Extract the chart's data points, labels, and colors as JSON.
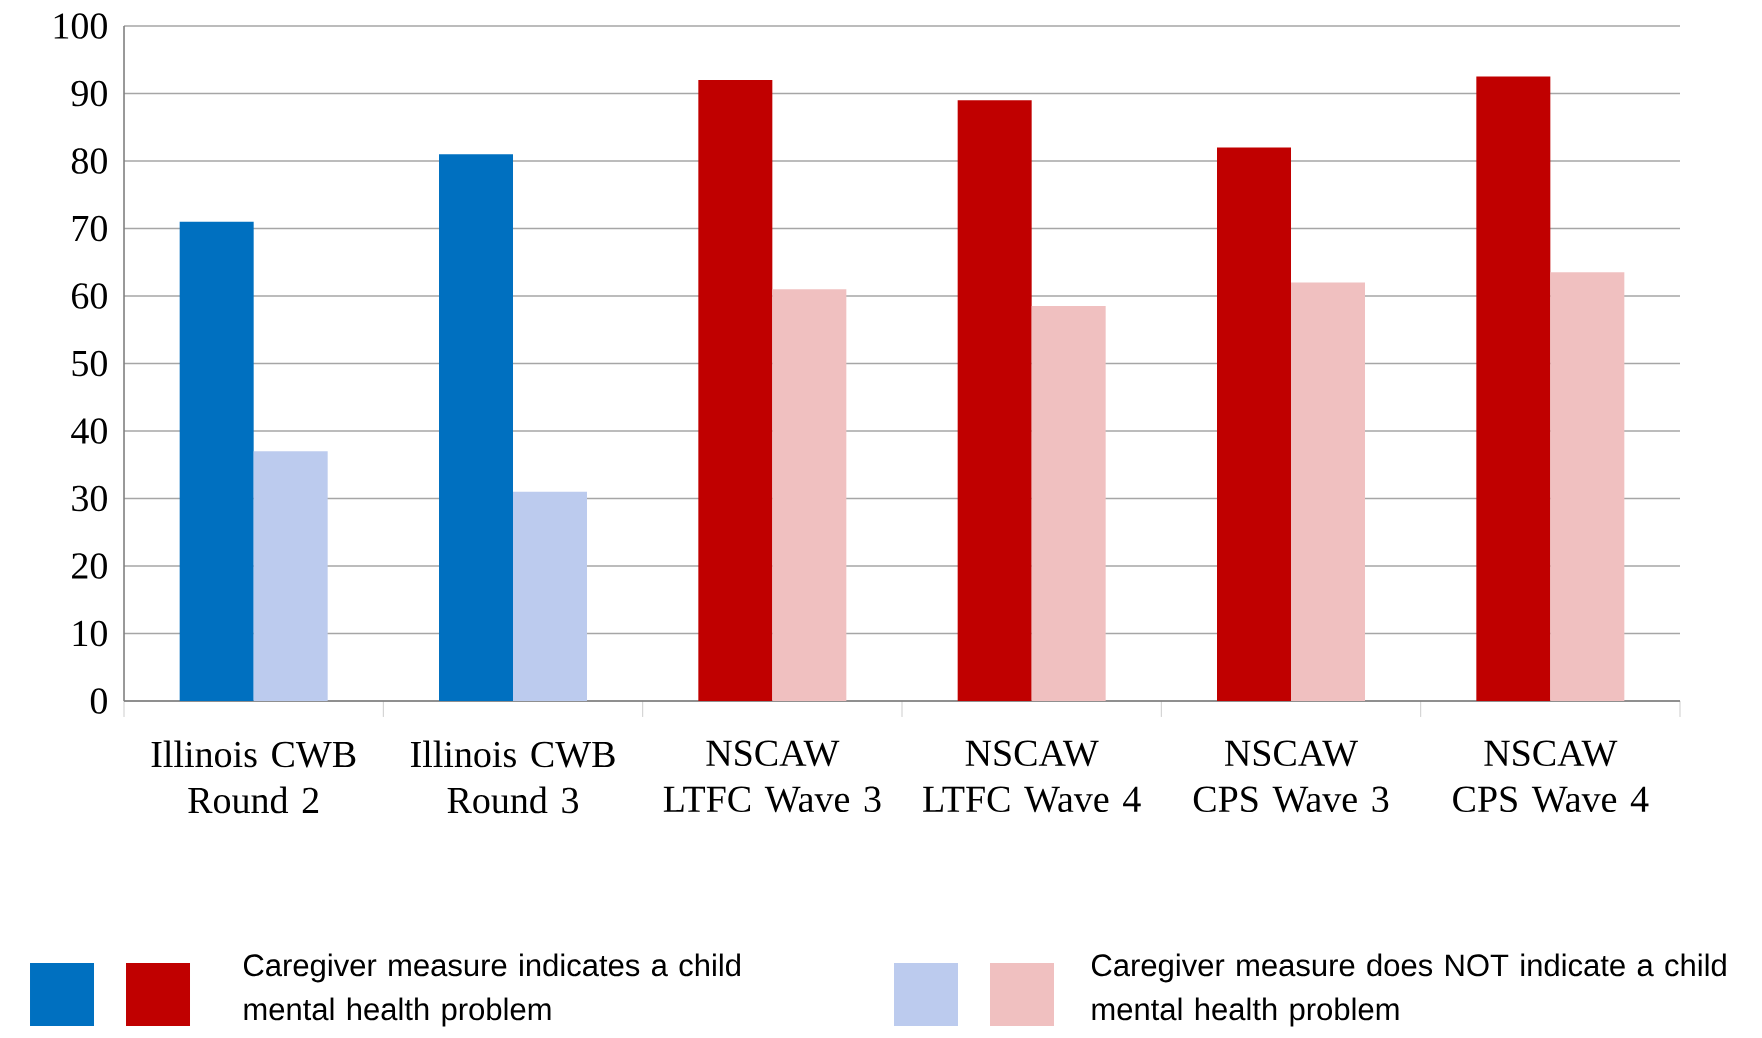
{
  "chart_data": {
    "type": "bar",
    "categories": [
      "Illinois CWB Round 2",
      "Illinois CWB Round 3",
      "NSCAW LTFC Wave 3",
      "NSCAW LTFC Wave 4",
      "NSCAW CPS Wave 3",
      "NSCAW CPS Wave 4"
    ],
    "series": [
      {
        "name": "Caregiver measure indicates a child mental health problem",
        "colors": [
          "#0070c0",
          "#0070c0",
          "#c00000",
          "#c00000",
          "#c00000",
          "#c00000"
        ],
        "values": [
          71,
          81,
          92,
          89,
          82,
          92.5
        ]
      },
      {
        "name": "Caregiver measure  does NOT indicate a child mental health problem",
        "colors": [
          "#bccbee",
          "#bccbee",
          "#f0c0c0",
          "#f0c0c0",
          "#f0c0c0",
          "#f0c0c0"
        ],
        "values": [
          37,
          31,
          61,
          58.5,
          62,
          63.5
        ]
      }
    ],
    "ylim": [
      0,
      100
    ],
    "yticks": [
      0,
      10,
      20,
      30,
      40,
      50,
      60,
      70,
      80,
      90,
      100
    ],
    "grid": "y",
    "legend": "bottom"
  }
}
